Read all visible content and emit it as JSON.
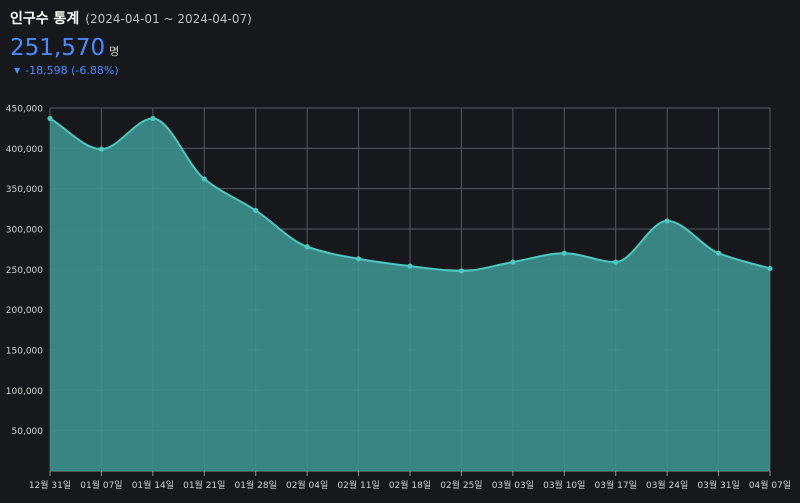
{
  "header": {
    "title": "인구수 통계",
    "date_range": "(2024-04-01 ~ 2024-04-07)",
    "value": "251,570",
    "unit": "명",
    "delta": "-18,598 (-6.88%)"
  },
  "colors": {
    "background": "#17181c",
    "grid": "#555a60",
    "line": "#4cc9c0",
    "fill": "#3c8f8c",
    "accent": "#4a8cff"
  },
  "chart_data": {
    "type": "area",
    "categories": [
      "12월 31일",
      "01월 07일",
      "01월 14일",
      "01월 21일",
      "01월 28일",
      "02월 04일",
      "02월 11일",
      "02월 18일",
      "02월 25일",
      "03월 03일",
      "03월 10일",
      "03월 17일",
      "03월 24일",
      "03월 31일",
      "04월 07일"
    ],
    "series": [
      {
        "values": [
          437000,
          399000,
          437000,
          362000,
          323000,
          278000,
          263000,
          254000,
          248000,
          259000,
          270000,
          259000,
          310000,
          270000,
          251000
        ]
      }
    ],
    "ylim": [
      0,
      450000
    ],
    "yticks": [
      "50,000",
      "100,000",
      "150,000",
      "200,000",
      "250,000",
      "300,000",
      "350,000",
      "400,000",
      "450,000"
    ],
    "ytick_values": [
      50000,
      100000,
      150000,
      200000,
      250000,
      300000,
      350000,
      400000,
      450000
    ],
    "grid": true,
    "legend": "none"
  }
}
